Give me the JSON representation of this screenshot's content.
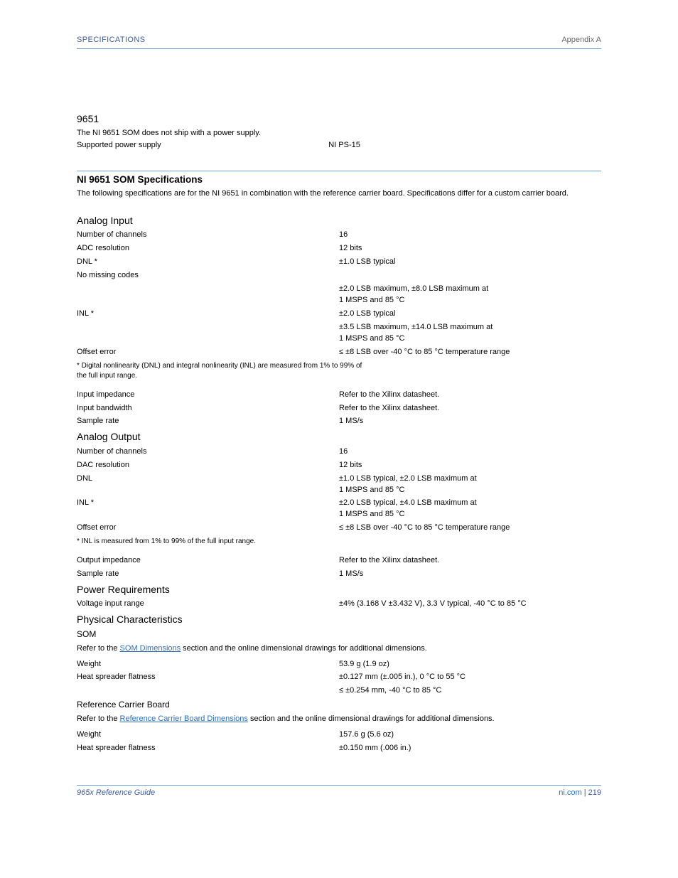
{
  "page": {
    "header_left": "SPECIFICATIONS",
    "header_right": "Appendix A",
    "footer_left": "965x Reference Guide",
    "footer_right_text": "ni.com",
    "footer_right_separator": " | ",
    "footer_page": "219"
  },
  "top_block": {
    "title": "9651",
    "subtitle": "The NI 9651 SOM does not ship with a power supply.",
    "supported_text": "Supported power supply",
    "supported_value": "NI PS-15"
  },
  "section": {
    "heading": "NI 9651 SOM Specifications",
    "subtitle": "The following specifications are for the NI 9651 in combination with the reference carrier board. Specifications differ for a custom carrier board."
  },
  "specs": [
    {
      "group": "Analog Input",
      "items": [
        {
          "param": "Number of channels",
          "value": "16"
        },
        {
          "param": "ADC resolution",
          "value": "12 bits"
        },
        {
          "param": "DNL *",
          "sub": "No missing codes",
          "value_lines": [
            "±1.0 LSB typical",
            "±2.0 LSB maximum, ±8.0 LSB maximum at\n1 MSPS and 85 °C"
          ]
        },
        {
          "param": "INL *",
          "value_lines": [
            "±2.0 LSB typical",
            "±3.5 LSB maximum, ±14.0 LSB maximum at\n1 MSPS and 85 °C"
          ]
        },
        {
          "param": "Offset error",
          "value": "≤ ±8 LSB over -40 °C to 85 °C temperature range"
        },
        {
          "note": "* Digital nonlinearity (DNL) and integral nonlinearity (INL) are measured from 1% to 99% of\nthe full input range."
        },
        {
          "param": "Input impedance",
          "value": "Refer to the Xilinx datasheet."
        },
        {
          "param": "Input bandwidth",
          "value": "Refer to the Xilinx datasheet."
        },
        {
          "param": "Sample rate",
          "value": "1 MS/s"
        }
      ]
    },
    {
      "group": "Analog Output",
      "items": [
        {
          "param": "Number of channels",
          "value": "16"
        },
        {
          "param": "DAC resolution",
          "value": "12 bits"
        },
        {
          "param": "DNL",
          "value_lines": [
            "±1.0 LSB typical, ±2.0 LSB maximum at\n1 MSPS and 85 °C"
          ]
        },
        {
          "param": "INL *",
          "value_lines": [
            "±2.0 LSB typical, ±4.0 LSB maximum at\n1 MSPS and 85 °C"
          ]
        },
        {
          "param": "Offset error",
          "value": "≤ ±8 LSB over -40 °C to 85 °C temperature range"
        },
        {
          "note": "* INL is measured from 1% to 99% of the full input range."
        },
        {
          "param": "Output impedance",
          "value": "Refer to the Xilinx datasheet."
        },
        {
          "param": "Sample rate",
          "value": "1 MS/s"
        }
      ]
    },
    {
      "group": "Power Requirements",
      "items": [
        {
          "param": "Voltage input range",
          "value_lines": [
            "±4% (3.168 V ±3.432 V), 3.3 V typical, -40 °C to 85 °C"
          ]
        }
      ]
    },
    {
      "group": "Physical Characteristics",
      "subgroups": [
        {
          "title": "SOM",
          "note_html": "Refer to the <a class=\"link\" href=\"#\">SOM Dimensions</a> section and the online dimensional drawings for additional dimensions.",
          "items": [
            {
              "param": "Weight",
              "value": "53.9 g (1.9 oz)"
            },
            {
              "param": "Heat spreader flatness",
              "value_lines": [
                "±0.127 mm (±.005 in.), 0 °C to 55 °C",
                "≤ ±0.254 mm, -40 °C to 85 °C"
              ]
            }
          ]
        },
        {
          "title": "Reference Carrier Board",
          "note_html": "Refer to the <a class=\"link\" href=\"#\">Reference Carrier Board Dimensions</a> section and the online dimensional drawings for additional dimensions.",
          "items": [
            {
              "param": "Weight",
              "value": "157.6 g (5.6 oz)"
            },
            {
              "param": "Heat spreader flatness",
              "value": "±0.150 mm (.006 in.)"
            }
          ]
        }
      ]
    }
  ]
}
